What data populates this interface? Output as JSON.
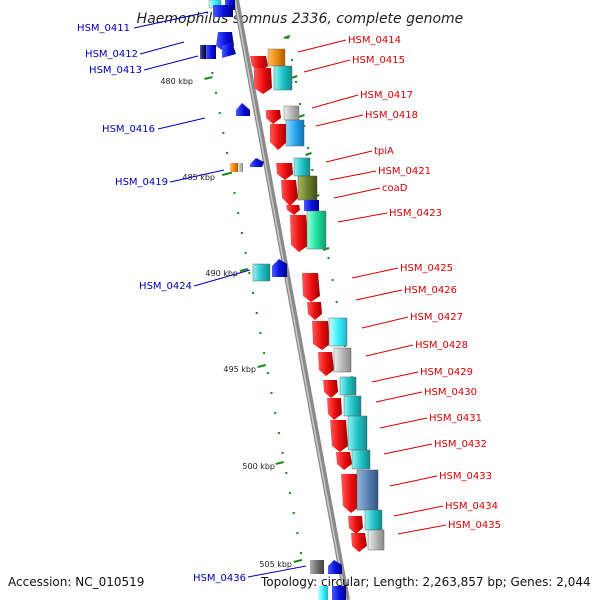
{
  "title": "Haemophilus somnus 2336, complete genome",
  "accession": "Accession: NC_010519",
  "topology": "Topology: circular; Length: 2,263,857 bp; Genes: 2,044",
  "scale_labels": [
    "480 kbp",
    "485 kbp",
    "490 kbp",
    "495 kbp",
    "500 kbp",
    "505 kbp"
  ],
  "genes_right": [
    "HSM_0414",
    "HSM_0415",
    "HSM_0417",
    "HSM_0418",
    "tpiA",
    "HSM_0421",
    "coaD",
    "HSM_0423",
    "HSM_0425",
    "HSM_0426",
    "HSM_0427",
    "HSM_0428",
    "HSM_0429",
    "HSM_0430",
    "HSM_0431",
    "HSM_0432",
    "HSM_0433",
    "HSM_0434",
    "HSM_0435"
  ],
  "genes_left": [
    "HSM_0411",
    "HSM_0412",
    "HSM_0413",
    "HSM_0416",
    "HSM_0419",
    "HSM_0424",
    "HSM_0436"
  ],
  "colors": {
    "forward_arrow": "#ee1111",
    "reverse_arrow": "#0a14e0",
    "cyan": "#22c4c8",
    "backbone": "#909090",
    "left_label": "#0000b0",
    "right_label": "#d40000",
    "dots": "#1a8a1a"
  }
}
